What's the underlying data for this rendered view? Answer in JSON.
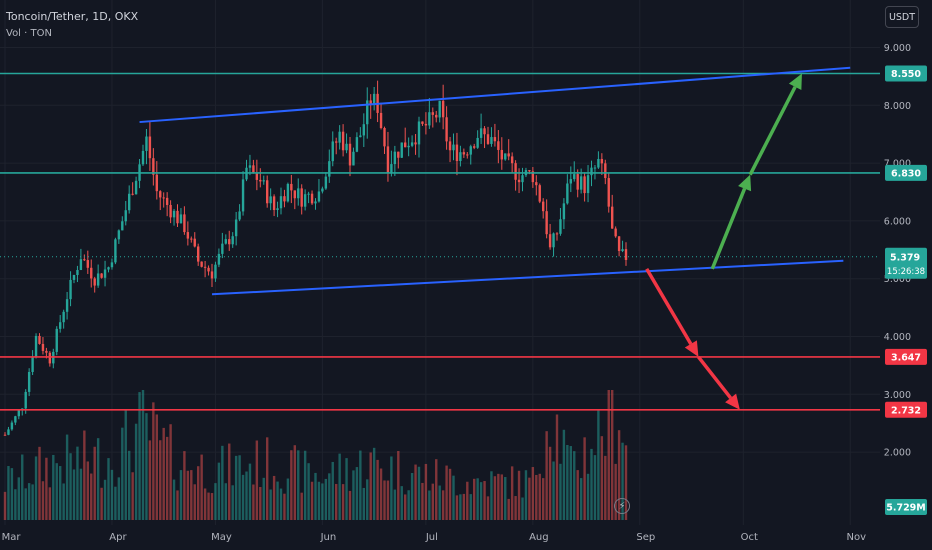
{
  "header": {
    "title": "Toncoin/Tether, 1D, OKX",
    "volume_label": "Vol · TON",
    "currency": "USDT"
  },
  "icons": {
    "bolt": "lightning-icon"
  },
  "chart_data": {
    "type": "candlestick",
    "symbol": "Toncoin/Tether",
    "interval": "1D",
    "exchange": "OKX",
    "ylim": [
      1.5,
      9.3
    ],
    "y_ticks": [
      "9.000",
      "8.000",
      "7.000",
      "6.000",
      "5.000",
      "4.000",
      "3.000",
      "2.000"
    ],
    "x_ticks": [
      "Mar",
      "Apr",
      "May",
      "Jun",
      "Jul",
      "Aug",
      "Sep",
      "Oct",
      "Nov"
    ],
    "last_price": {
      "value": "5.379",
      "countdown": "15:26:38"
    },
    "volume_label_value": "5.729M",
    "levels": [
      {
        "value": "8.550",
        "color": "#26a69a"
      },
      {
        "value": "6.830",
        "color": "#26a69a"
      },
      {
        "value": "3.647",
        "color": "#f23645"
      },
      {
        "value": "2.732",
        "color": "#f23645"
      }
    ],
    "price_path": [
      [
        "2024-03-01",
        2.3
      ],
      [
        "2024-03-06",
        2.8
      ],
      [
        "2024-03-10",
        4.0
      ],
      [
        "2024-03-14",
        3.6
      ],
      [
        "2024-03-19",
        4.7
      ],
      [
        "2024-03-23",
        5.4
      ],
      [
        "2024-03-27",
        5.0
      ],
      [
        "2024-03-31",
        5.2
      ],
      [
        "2024-04-04",
        6.0
      ],
      [
        "2024-04-08",
        6.8
      ],
      [
        "2024-04-11",
        7.4
      ],
      [
        "2024-04-14",
        6.5
      ],
      [
        "2024-04-18",
        6.2
      ],
      [
        "2024-04-22",
        5.9
      ],
      [
        "2024-04-26",
        5.3
      ],
      [
        "2024-04-30",
        5.1
      ],
      [
        "2024-05-03",
        5.5
      ],
      [
        "2024-05-07",
        5.9
      ],
      [
        "2024-05-10",
        6.9
      ],
      [
        "2024-05-14",
        6.7
      ],
      [
        "2024-05-18",
        6.2
      ],
      [
        "2024-05-22",
        6.6
      ],
      [
        "2024-05-26",
        6.4
      ],
      [
        "2024-05-31",
        6.5
      ],
      [
        "2024-06-03",
        7.1
      ],
      [
        "2024-06-06",
        7.5
      ],
      [
        "2024-06-09",
        7.1
      ],
      [
        "2024-06-12",
        7.5
      ],
      [
        "2024-06-15",
        8.1
      ],
      [
        "2024-06-17",
        8.0
      ],
      [
        "2024-06-20",
        7.0
      ],
      [
        "2024-06-24",
        7.3
      ],
      [
        "2024-06-28",
        7.5
      ],
      [
        "2024-07-02",
        7.7
      ],
      [
        "2024-07-05",
        7.9
      ],
      [
        "2024-07-08",
        7.2
      ],
      [
        "2024-07-12",
        7.2
      ],
      [
        "2024-07-16",
        7.5
      ],
      [
        "2024-07-20",
        7.4
      ],
      [
        "2024-07-24",
        7.0
      ],
      [
        "2024-07-28",
        6.8
      ],
      [
        "2024-08-01",
        6.8
      ],
      [
        "2024-08-04",
        6.2
      ],
      [
        "2024-08-06",
        5.5
      ],
      [
        "2024-08-08",
        5.8
      ],
      [
        "2024-08-12",
        6.8
      ],
      [
        "2024-08-16",
        6.6
      ],
      [
        "2024-08-20",
        7.0
      ],
      [
        "2024-08-22",
        6.7
      ],
      [
        "2024-08-24",
        5.8
      ],
      [
        "2024-08-26",
        5.4
      ],
      [
        "2024-08-28",
        5.38
      ]
    ],
    "volume_path": [
      [
        "2024-03-01",
        0.3
      ],
      [
        "2024-03-15",
        0.45
      ],
      [
        "2024-04-01",
        0.5
      ],
      [
        "2024-04-10",
        0.75
      ],
      [
        "2024-04-20",
        0.45
      ],
      [
        "2024-05-01",
        0.4
      ],
      [
        "2024-05-15",
        0.45
      ],
      [
        "2024-06-01",
        0.35
      ],
      [
        "2024-06-15",
        0.45
      ],
      [
        "2024-07-01",
        0.35
      ],
      [
        "2024-07-15",
        0.3
      ],
      [
        "2024-08-01",
        0.3
      ],
      [
        "2024-08-06",
        0.9
      ],
      [
        "2024-08-12",
        0.4
      ],
      [
        "2024-08-26",
        0.9
      ],
      [
        "2024-08-28",
        0.6
      ]
    ],
    "channel": {
      "upper": [
        [
          "2024-04-09",
          7.71
        ],
        [
          "2024-11-01",
          8.65
        ]
      ],
      "lower": [
        [
          "2024-04-30",
          4.73
        ],
        [
          "2024-10-30",
          5.31
        ]
      ],
      "color": "#2962ff"
    },
    "arrows": [
      {
        "from": [
          "2024-09-22",
          5.17
        ],
        "to": [
          "2024-10-03",
          6.8
        ],
        "color": "#4caf50"
      },
      {
        "from": [
          "2024-10-03",
          6.8
        ],
        "to": [
          "2024-10-18",
          8.55
        ],
        "color": "#4caf50"
      },
      {
        "from": [
          "2024-09-03",
          5.17
        ],
        "to": [
          "2024-09-18",
          3.647
        ],
        "color": "#f23645"
      },
      {
        "from": [
          "2024-09-18",
          3.647
        ],
        "to": [
          "2024-09-30",
          2.732
        ],
        "color": "#f23645"
      }
    ],
    "up_color": "#26a69a",
    "down_color": "#ef5350"
  }
}
